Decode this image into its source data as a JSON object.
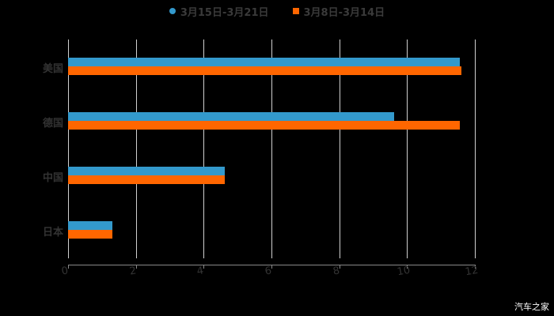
{
  "chart_data": {
    "type": "bar",
    "orientation": "horizontal",
    "title": "",
    "xlabel": "",
    "ylabel": "",
    "categories": [
      "美国",
      "德国",
      "中国",
      "日本"
    ],
    "series": [
      {
        "name": "3月15日-3月21日",
        "color": "#3399cc",
        "marker": "circle",
        "values": [
          11.56,
          9.62,
          4.62,
          1.31
        ]
      },
      {
        "name": "3月8日-3月14日",
        "color": "#ff6600",
        "marker": "square",
        "values": [
          11.6,
          11.56,
          4.62,
          1.31
        ]
      }
    ],
    "xlim": [
      0,
      12
    ],
    "xticks": [
      "0",
      "2",
      "4",
      "6",
      "8",
      "10",
      "12"
    ],
    "grid": true,
    "legend_position": "top"
  },
  "watermark": "汽车之家"
}
